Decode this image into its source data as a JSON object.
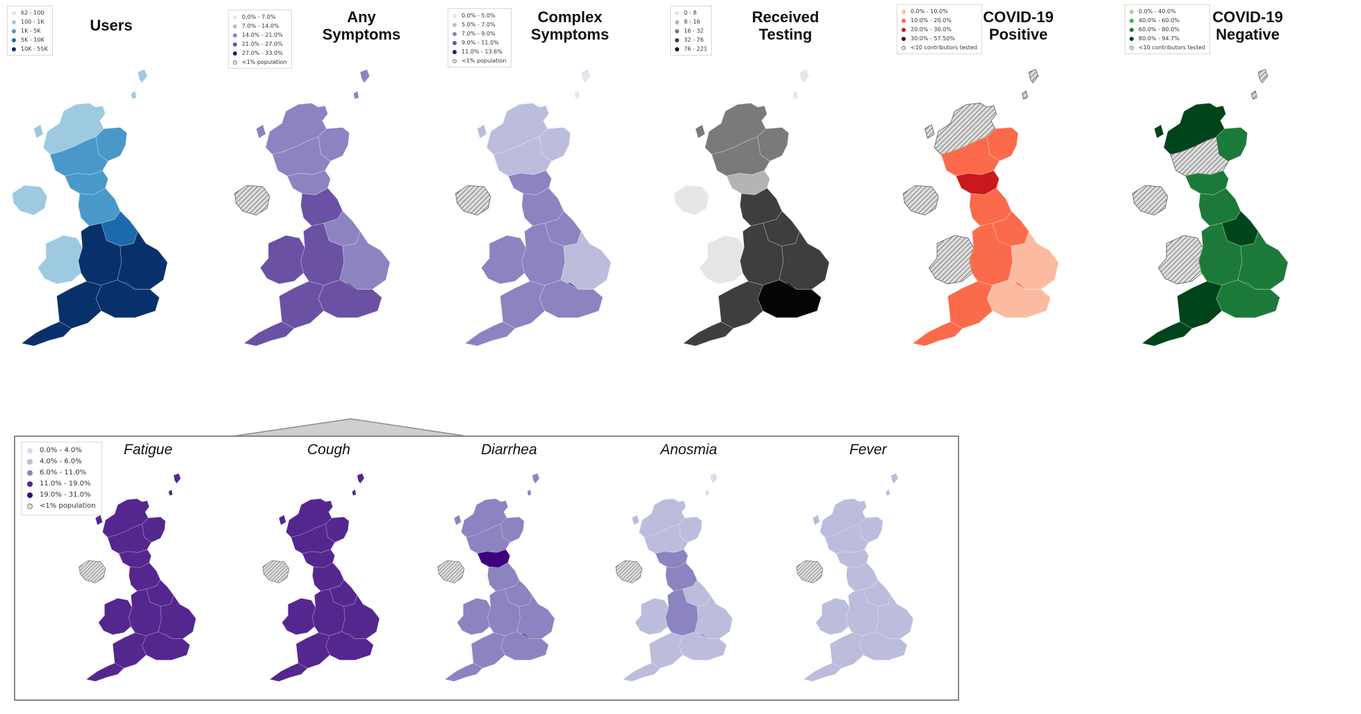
{
  "hatch_color": "#555555",
  "top_panels": [
    {
      "title": "Users",
      "scheme": "blues",
      "legend": [
        "62 - 100",
        "100 - 1K",
        "1K - 5K",
        "5K - 10K",
        "10K - 55K"
      ],
      "legend_colors": [
        "#d6e6f4",
        "#9ecae1",
        "#4a98c9",
        "#1c6aae",
        "#08306b"
      ],
      "region_levels": {
        "scot_n": 1,
        "scot_ne": 2,
        "scot_c": 2,
        "scot_s": 2,
        "ni": 1,
        "n_eng": 2,
        "yorks": 3,
        "wales": 1,
        "mids": 4,
        "east": 4,
        "london": 4,
        "se": 4,
        "sw": 4,
        "cornwall": 4,
        "islands": 1
      }
    },
    {
      "title": "Any Symptoms",
      "scheme": "purples",
      "legend": [
        "0.0% - 7.0%",
        "7.0% - 14.0%",
        "14.0% - 21.0%",
        "21.0% - 27.0%",
        "27.0% - 33.0%",
        "<1% population"
      ],
      "legend_colors": [
        "#e7e4f1",
        "#bcbddc",
        "#8c83c1",
        "#6a51a3",
        "#3f007d"
      ],
      "region_levels": {
        "scot_n": 2,
        "scot_ne": 2,
        "scot_c": 2,
        "scot_s": 2,
        "ni": -1,
        "n_eng": 3,
        "yorks": 2,
        "wales": 3,
        "mids": 3,
        "east": 2,
        "london": 3,
        "se": 3,
        "sw": 3,
        "cornwall": 3,
        "islands": 2
      }
    },
    {
      "title": "Complex Symptoms",
      "scheme": "purples",
      "legend": [
        "0.0% - 5.0%",
        "5.0% - 7.0%",
        "7.0% - 9.0%",
        "9.0% - 11.0%",
        "11.0% - 13.6%",
        "<1% population"
      ],
      "legend_colors": [
        "#e7e4f1",
        "#bcbddc",
        "#8c83c1",
        "#6a51a3",
        "#3f007d"
      ],
      "region_levels": {
        "scot_n": 1,
        "scot_ne": 1,
        "scot_c": 1,
        "scot_s": 2,
        "ni": -1,
        "n_eng": 2,
        "yorks": 2,
        "wales": 2,
        "mids": 2,
        "east": 1,
        "london": 3,
        "se": 2,
        "sw": 2,
        "cornwall": 2,
        "islands": 0
      }
    },
    {
      "title": "Received Testing",
      "scheme": "greys",
      "legend": [
        "0 - 8",
        "8 - 16",
        "16 - 32",
        "32 - 76",
        "76 - 221"
      ],
      "legend_colors": [
        "#e6e6e6",
        "#b4b4b4",
        "#7a7a7a",
        "#3e3e3e",
        "#050505"
      ],
      "region_levels": {
        "scot_n": 2,
        "scot_ne": 2,
        "scot_c": 2,
        "scot_s": 1,
        "ni": 0,
        "n_eng": 3,
        "yorks": 3,
        "wales": 0,
        "mids": 3,
        "east": 3,
        "london": 4,
        "se": 4,
        "sw": 3,
        "cornwall": 3,
        "islands": 0
      }
    },
    {
      "title": "COVID-19 Positive",
      "scheme": "reds",
      "legend": [
        "0.0% - 10.0%",
        "10.0% - 20.0%",
        "20.0% - 30.0%",
        "30.0% - 57.50%",
        "<10 contributors tested"
      ],
      "legend_colors": [
        "#fcbba1",
        "#fb6a4a",
        "#cb181d",
        "#67000d"
      ],
      "region_levels": {
        "scot_n": -1,
        "scot_ne": 1,
        "scot_c": 1,
        "scot_s": 2,
        "ni": -1,
        "n_eng": 1,
        "yorks": 1,
        "wales": -1,
        "mids": 1,
        "east": 0,
        "london": 1,
        "se": 0,
        "sw": 1,
        "cornwall": 1,
        "islands": -1
      }
    },
    {
      "title": "COVID-19 Negative",
      "scheme": "greens",
      "legend": [
        "0.0% - 40.0%",
        "40.0% - 60.0%",
        "60.0% - 80.0%",
        "80.0% - 94.7%",
        "<10 contributors tested"
      ],
      "legend_colors": [
        "#a1d99b",
        "#41ab5d",
        "#1b7a3a",
        "#00441b"
      ],
      "region_levels": {
        "scot_n": 3,
        "scot_ne": 2,
        "scot_c": -1,
        "scot_s": 2,
        "ni": -1,
        "n_eng": 2,
        "yorks": 3,
        "wales": -1,
        "mids": 2,
        "east": 2,
        "london": 2,
        "se": 2,
        "sw": 3,
        "cornwall": 3,
        "islands": -1
      }
    }
  ],
  "symptoms_inset": {
    "legend": [
      "0.0% - 4.0%",
      "4.0% - 6.0%",
      "6.0% - 11.0%",
      "11.0% - 19.0%",
      "19.0% - 31.0%",
      "<1% population"
    ],
    "legend_colors": [
      "#dadaeb",
      "#bcbddc",
      "#8c83c1",
      "#54278f",
      "#3f007d"
    ],
    "panels": [
      {
        "title": "Fatigue",
        "region_levels": {
          "scot_n": 3,
          "scot_ne": 3,
          "scot_c": 3,
          "scot_s": 3,
          "ni": -1,
          "n_eng": 3,
          "yorks": 3,
          "wales": 3,
          "mids": 3,
          "east": 3,
          "london": 3,
          "se": 3,
          "sw": 3,
          "cornwall": 3,
          "islands": 3
        }
      },
      {
        "title": "Cough",
        "region_levels": {
          "scot_n": 3,
          "scot_ne": 3,
          "scot_c": 3,
          "scot_s": 3,
          "ni": -1,
          "n_eng": 3,
          "yorks": 3,
          "wales": 3,
          "mids": 3,
          "east": 3,
          "london": 3,
          "se": 3,
          "sw": 3,
          "cornwall": 3,
          "islands": 3
        }
      },
      {
        "title": "Diarrhea",
        "region_levels": {
          "scot_n": 2,
          "scot_ne": 2,
          "scot_c": 2,
          "scot_s": 4,
          "ni": -1,
          "n_eng": 2,
          "yorks": 2,
          "wales": 2,
          "mids": 2,
          "east": 2,
          "london": 3,
          "se": 2,
          "sw": 2,
          "cornwall": 2,
          "islands": 2
        }
      },
      {
        "title": "Anosmia",
        "region_levels": {
          "scot_n": 1,
          "scot_ne": 1,
          "scot_c": 1,
          "scot_s": 2,
          "ni": -1,
          "n_eng": 2,
          "yorks": 1,
          "wales": 1,
          "mids": 2,
          "east": 1,
          "london": 2,
          "se": 1,
          "sw": 1,
          "cornwall": 1,
          "islands": 0
        }
      },
      {
        "title": "Fever",
        "region_levels": {
          "scot_n": 1,
          "scot_ne": 1,
          "scot_c": 1,
          "scot_s": 1,
          "ni": -1,
          "n_eng": 1,
          "yorks": 1,
          "wales": 1,
          "mids": 1,
          "east": 1,
          "london": 1,
          "se": 1,
          "sw": 1,
          "cornwall": 1,
          "islands": 1
        }
      }
    ]
  }
}
